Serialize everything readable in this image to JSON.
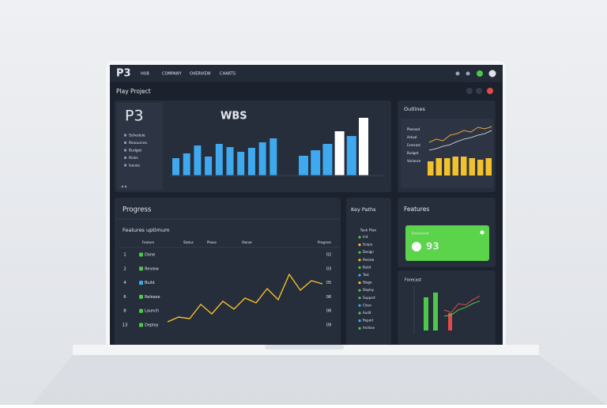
{
  "nav": {
    "logo": "P3",
    "items": [
      "HUB",
      "COMPANY",
      "OVERVIEW",
      "CHARTS"
    ]
  },
  "header": {
    "title": "Play Project"
  },
  "wbs": {
    "logo": "P3",
    "list": [
      "Schedule",
      "Resources",
      "Budget",
      "Risks",
      "Issues"
    ],
    "title": "WBS",
    "group1": [
      22,
      28,
      38,
      24,
      40,
      36,
      30,
      35,
      42,
      47
    ],
    "group2": [
      25,
      32,
      40,
      56,
      50,
      73
    ],
    "highlight": [
      3,
      5
    ]
  },
  "outlines": {
    "title": "Outlines",
    "labels": [
      "Planned",
      "Actual",
      "Forecast",
      "Budget",
      "Variance"
    ],
    "line_orange": [
      40,
      48,
      44,
      58,
      62,
      70,
      66,
      78,
      74,
      80
    ],
    "line_white": [
      20,
      24,
      30,
      34,
      42,
      48,
      52,
      58,
      62,
      70
    ],
    "bars": [
      18,
      22,
      22,
      24,
      24,
      22,
      20,
      22
    ]
  },
  "progress": {
    "title": "Progress",
    "subtitle": "Features uptimum",
    "headers": [
      "Feature",
      "Status",
      "Phase",
      "Owner",
      "Progress"
    ],
    "rows": [
      [
        "1",
        "Done",
        "02"
      ],
      [
        "2",
        "Review",
        "03"
      ],
      [
        "4",
        "Build",
        "05"
      ],
      [
        "6",
        "Release",
        "06"
      ],
      [
        "8",
        "Launch",
        "08"
      ],
      [
        "13",
        "Deploy",
        "09"
      ]
    ],
    "line": [
      4,
      10,
      8,
      26,
      14,
      30,
      20,
      34,
      28,
      46,
      32,
      64,
      44,
      56,
      52
    ]
  },
  "key_paths": {
    "title": "Key Paths",
    "subtitle": "Task Plan",
    "items": [
      "Init",
      "Scope",
      "Design",
      "Review",
      "Build",
      "Test",
      "Stage",
      "Deploy",
      "Support",
      "Close",
      "Audit",
      "Report",
      "Archive"
    ]
  },
  "features": {
    "title": "Features",
    "card_label": "Delivered",
    "card_value": "93",
    "forecast_title": "Forecast",
    "bars_green": [
      42,
      48
    ],
    "bar_red": 22,
    "line_red": [
      30,
      26,
      40,
      38,
      46,
      52
    ],
    "line_green": [
      20,
      22,
      30,
      34,
      40,
      44
    ]
  }
}
